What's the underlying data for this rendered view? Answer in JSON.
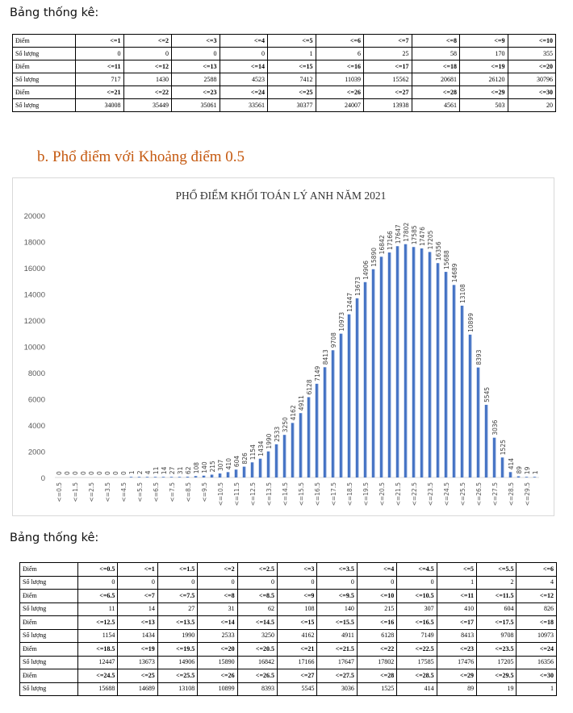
{
  "top_section": {
    "heading": "Bảng thống kê:",
    "row_label_score": "Điểm",
    "row_label_count": "Số lượng",
    "rows": [
      {
        "scores": [
          "<=1",
          "<=2",
          "<=3",
          "<=4",
          "<=5",
          "<=6",
          "<=7",
          "<=8",
          "<=9",
          "<=10"
        ],
        "counts": [
          "0",
          "0",
          "0",
          "0",
          "1",
          "6",
          "25",
          "58",
          "170",
          "355"
        ]
      },
      {
        "scores": [
          "<=11",
          "<=12",
          "<=13",
          "<=14",
          "<=15",
          "<=16",
          "<=17",
          "<=18",
          "<=19",
          "<=20"
        ],
        "counts": [
          "717",
          "1430",
          "2588",
          "4523",
          "7412",
          "11039",
          "15562",
          "20681",
          "26120",
          "30796"
        ]
      },
      {
        "scores": [
          "<=21",
          "<=22",
          "<=23",
          "<=24",
          "<=25",
          "<=26",
          "<=27",
          "<=28",
          "<=29",
          "<=30"
        ],
        "counts": [
          "34008",
          "35449",
          "35061",
          "33561",
          "30377",
          "24007",
          "13938",
          "4561",
          "503",
          "20"
        ]
      }
    ]
  },
  "section_b": {
    "title": "b. Phổ điểm với Khoảng điểm 0.5"
  },
  "chart_data": {
    "type": "bar",
    "title": "PHỔ ĐIỂM KHỐI TOÁN LÝ ANH  NĂM 2021",
    "xlabel": "",
    "ylabel": "",
    "ylim": [
      0,
      20000
    ],
    "yticks": [
      "0",
      "2000",
      "4000",
      "6000",
      "8000",
      "10000",
      "12000",
      "14000",
      "16000",
      "18000",
      "20000"
    ],
    "bar_color": "#4472c4",
    "grid": false,
    "categories": [
      "<=0.5",
      "<=1",
      "<=1.5",
      "<=2",
      "<=2.5",
      "<=3",
      "<=3.5",
      "<=4",
      "<=4.5",
      "<=5",
      "<=5.5",
      "<=6",
      "<=6.5",
      "<=7",
      "<=7.5",
      "<=8",
      "<=8.5",
      "<=9",
      "<=9.5",
      "<=10",
      "<=10.5",
      "<=11",
      "<=11.5",
      "<=12",
      "<=12.5",
      "<=13",
      "<=13.5",
      "<=14",
      "<=14.5",
      "<=15",
      "<=15.5",
      "<=16",
      "<=16.5",
      "<=17",
      "<=17.5",
      "<=18",
      "<=18.5",
      "<=19",
      "<=19.5",
      "<=20",
      "<=20.5",
      "<=21",
      "<=21.5",
      "<=22",
      "<=22.5",
      "<=23",
      "<=23.5",
      "<=24",
      "<=24.5",
      "<=25",
      "<=25.5",
      "<=26",
      "<=26.5",
      "<=27",
      "<=27.5",
      "<=28",
      "<=28.5",
      "<=29",
      "<=29.5",
      "<=30"
    ],
    "tick_labels": [
      "<=0.5",
      "<=1.5",
      "<=2.5",
      "<=3.5",
      "<=4.5",
      "<=5.5",
      "<=6.5",
      "<=7.5",
      "<=8.5",
      "<=9.5",
      "<=10.5",
      "<=11.5",
      "<=12.5",
      "<=13.5",
      "<=14.5",
      "<=15.5",
      "<=16.5",
      "<=17.5",
      "<=18.5",
      "<=19.5",
      "<=20.5",
      "<=21.5",
      "<=22.5",
      "<=23.5",
      "<=24.5",
      "<=25.5",
      "<=26.5",
      "<=27.5",
      "<=28.5",
      "<=29.5"
    ],
    "values": [
      0,
      0,
      0,
      0,
      0,
      0,
      0,
      0,
      0,
      1,
      2,
      4,
      11,
      14,
      27,
      31,
      62,
      108,
      140,
      215,
      307,
      410,
      604,
      826,
      1154,
      1434,
      1990,
      2533,
      3250,
      4162,
      4911,
      6128,
      7149,
      8413,
      9708,
      10973,
      12447,
      13673,
      14906,
      15890,
      16842,
      17166,
      17647,
      17802,
      17585,
      17476,
      17205,
      16356,
      15688,
      14689,
      13108,
      10899,
      8393,
      5545,
      3036,
      1525,
      414,
      89,
      19,
      1
    ]
  },
  "bottom_section": {
    "heading": "Bảng thống kê:",
    "row_label_score": "Điểm",
    "row_label_count": "Số lượng",
    "rows": [
      {
        "scores": [
          "<=0.5",
          "<=1",
          "<=1.5",
          "<=2",
          "<=2.5",
          "<=3",
          "<=3.5",
          "<=4",
          "<=4.5",
          "<=5",
          "<=5.5",
          "<=6"
        ],
        "counts": [
          "0",
          "0",
          "0",
          "0",
          "0",
          "0",
          "0",
          "0",
          "0",
          "1",
          "2",
          "4"
        ]
      },
      {
        "scores": [
          "<=6.5",
          "<=7",
          "<=7.5",
          "<=8",
          "<=8.5",
          "<=9",
          "<=9.5",
          "<=10",
          "<=10.5",
          "<=11",
          "<=11.5",
          "<=12"
        ],
        "counts": [
          "11",
          "14",
          "27",
          "31",
          "62",
          "108",
          "140",
          "215",
          "307",
          "410",
          "604",
          "826"
        ]
      },
      {
        "scores": [
          "<=12.5",
          "<=13",
          "<=13.5",
          "<=14",
          "<=14.5",
          "<=15",
          "<=15.5",
          "<=16",
          "<=16.5",
          "<=17",
          "<=17.5",
          "<=18"
        ],
        "counts": [
          "1154",
          "1434",
          "1990",
          "2533",
          "3250",
          "4162",
          "4911",
          "6128",
          "7149",
          "8413",
          "9708",
          "10973"
        ]
      },
      {
        "scores": [
          "<=18.5",
          "<=19",
          "<=19.5",
          "<=20",
          "<=20.5",
          "<=21",
          "<=21.5",
          "<=22",
          "<=22.5",
          "<=23",
          "<=23.5",
          "<=24"
        ],
        "counts": [
          "12447",
          "13673",
          "14906",
          "15890",
          "16842",
          "17166",
          "17647",
          "17802",
          "17585",
          "17476",
          "17205",
          "16356"
        ]
      },
      {
        "scores": [
          "<=24.5",
          "<=25",
          "<=25.5",
          "<=26",
          "<=26.5",
          "<=27",
          "<=27.5",
          "<=28",
          "<=28.5",
          "<=29",
          "<=29.5",
          "<=30"
        ],
        "counts": [
          "15688",
          "14689",
          "13108",
          "10899",
          "8393",
          "5545",
          "3036",
          "1525",
          "414",
          "89",
          "19",
          "1"
        ]
      }
    ]
  }
}
